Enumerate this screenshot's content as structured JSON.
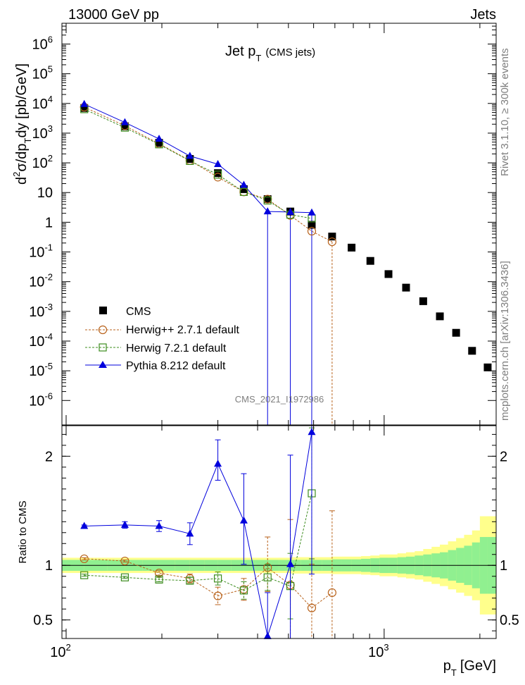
{
  "header": {
    "left": "13000 GeV pp",
    "right": "Jets"
  },
  "side_labels": {
    "rivet": "Rivet 3.1.10, ≥ 300k events",
    "mcplots": "mcplots.cern.ch [arXiv:1306.3436]"
  },
  "chart_data": [
    {
      "type": "scatter",
      "title_main": "Jet p",
      "title_sub": "T",
      "title_suffix": "(CMS jets)",
      "ylabel": "d²σ/dp_T dy [pb/GeV]",
      "ylabel_parts": {
        "d": "d",
        "sup2": "2",
        "sigma_dp": "σ/dp",
        "subT": "T",
        "dy_units": "dy [pb/GeV]"
      },
      "xscale": "log",
      "yscale": "log",
      "xlim": [
        97,
        2250
      ],
      "ylim": [
        1.5e-07,
        5000000.0
      ],
      "y_ticks": [
        {
          "v": 1000000.0,
          "b": "10",
          "e": "6"
        },
        {
          "v": 100000.0,
          "b": "10",
          "e": "5"
        },
        {
          "v": 10000.0,
          "b": "10",
          "e": "4"
        },
        {
          "v": 1000.0,
          "b": "10",
          "e": "3"
        },
        {
          "v": 100.0,
          "b": "10",
          "e": "2"
        },
        {
          "v": 10,
          "b": "10",
          "e": ""
        },
        {
          "v": 1,
          "b": "1",
          "e": ""
        },
        {
          "v": 0.1,
          "b": "10",
          "e": "-1"
        },
        {
          "v": 0.01,
          "b": "10",
          "e": "-2"
        },
        {
          "v": 0.001,
          "b": "10",
          "e": "-3"
        },
        {
          "v": 0.0001,
          "b": "10",
          "e": "-4"
        },
        {
          "v": 1e-05,
          "b": "10",
          "e": "-5"
        },
        {
          "v": 1e-06,
          "b": "10",
          "e": "-6"
        }
      ],
      "watermark": "CMS_2021_I1972986",
      "legend_position": "bottom-left",
      "series": [
        {
          "name": "CMS",
          "marker": "square",
          "color": "#000000",
          "x": [
            114,
            153,
            196,
            245,
            300,
            362,
            430,
            507,
            592,
            686,
            790,
            905,
            1032,
            1172,
            1327,
            1497,
            1684,
            1890,
            2116
          ],
          "y": [
            7000,
            1700,
            470,
            135,
            45,
            13,
            6,
            2.3,
            0.82,
            0.33,
            0.14,
            0.05,
            0.018,
            0.0063,
            0.0022,
            0.00068,
            0.00019,
            4.7e-05,
            1.3e-05
          ]
        },
        {
          "name": "Herwig++ 2.7.1 default",
          "marker": "circle",
          "color": "#b8621b",
          "x": [
            114,
            153,
            196,
            245,
            300,
            362,
            430,
            507,
            592,
            686
          ],
          "y": [
            7500,
            1780,
            440,
            120,
            33,
            10.5,
            6,
            1.7,
            0.5,
            0.22
          ]
        },
        {
          "name": "Herwig 7.2.1 default",
          "marker": "square-open",
          "color": "#3c8c1e",
          "x": [
            114,
            153,
            196,
            245,
            300,
            362,
            430,
            507,
            592
          ],
          "y": [
            6400,
            1530,
            420,
            116,
            40,
            10.5,
            5.4,
            1.8,
            1.35
          ]
        },
        {
          "name": "Pythia 8.212 default",
          "marker": "triangle",
          "color": "#0000dd",
          "x": [
            114,
            153,
            196,
            245,
            300,
            362,
            430,
            507,
            592
          ],
          "y": [
            9500,
            2300,
            640,
            170,
            90,
            18,
            2.3,
            2.2,
            2.1
          ]
        }
      ]
    },
    {
      "type": "scatter",
      "ylabel": "Ratio to CMS",
      "xlabel_main": "p",
      "xlabel_sub": "T",
      "xlabel_suffix": "[GeV]",
      "xscale": "log",
      "xlim": [
        97,
        2250
      ],
      "ylim": [
        0.33,
        2.28
      ],
      "y_ticks": [
        {
          "v": 0.5,
          "label": "0.5"
        },
        {
          "v": 1,
          "label": "1"
        },
        {
          "v": 2,
          "label": "2"
        }
      ],
      "x_ticks": [
        {
          "v": 100,
          "b": "10",
          "e": "2"
        },
        {
          "v": 1000,
          "b": "10",
          "e": "3"
        }
      ],
      "band_edges": [
        97,
        114,
        135,
        153,
        174,
        196,
        220,
        245,
        272,
        300,
        330,
        362,
        395,
        430,
        468,
        507,
        548,
        592,
        638,
        686,
        737,
        790,
        846,
        905,
        967,
        1032,
        1101,
        1172,
        1248,
        1327,
        1410,
        1497,
        1588,
        1684,
        1784,
        1890,
        2000,
        2116,
        2250
      ],
      "band_inner": [
        0.05,
        0.05,
        0.05,
        0.05,
        0.05,
        0.05,
        0.05,
        0.05,
        0.05,
        0.05,
        0.05,
        0.05,
        0.05,
        0.05,
        0.05,
        0.05,
        0.05,
        0.05,
        0.05,
        0.055,
        0.055,
        0.055,
        0.06,
        0.065,
        0.07,
        0.07,
        0.075,
        0.08,
        0.09,
        0.1,
        0.11,
        0.12,
        0.14,
        0.16,
        0.18,
        0.21,
        0.26,
        0.26
      ],
      "band_outer": [
        0.07,
        0.07,
        0.07,
        0.07,
        0.07,
        0.07,
        0.07,
        0.07,
        0.07,
        0.07,
        0.07,
        0.07,
        0.07,
        0.07,
        0.07,
        0.075,
        0.075,
        0.075,
        0.075,
        0.08,
        0.08,
        0.08,
        0.085,
        0.09,
        0.1,
        0.1,
        0.11,
        0.12,
        0.13,
        0.15,
        0.17,
        0.19,
        0.22,
        0.25,
        0.28,
        0.32,
        0.45,
        0.45
      ],
      "band_colors": {
        "inner": "#90f090",
        "outer": "#ffff8c"
      },
      "series": [
        {
          "name": "Herwig++ 2.7.1 default",
          "marker": "circle",
          "color": "#b8621b",
          "x": [
            114,
            153,
            196,
            245,
            300,
            362,
            430,
            507,
            592,
            686
          ],
          "y": [
            1.06,
            1.04,
            0.93,
            0.88,
            0.72,
            0.78,
            0.98,
            0.82,
            0.61,
            0.75
          ],
          "err_low": [
            0.01,
            0.01,
            0.02,
            0.04,
            0.08,
            0.1,
            0.22,
            0.5,
            0.3,
            0.45
          ],
          "err_high": [
            0.01,
            0.01,
            0.02,
            0.04,
            0.08,
            0.1,
            0.28,
            0.6,
            0.4,
            0.75
          ]
        },
        {
          "name": "Herwig 7.2.1 default",
          "marker": "square-open",
          "color": "#3c8c1e",
          "x": [
            114,
            153,
            196,
            245,
            300,
            362,
            430,
            507,
            592
          ],
          "y": [
            0.91,
            0.89,
            0.87,
            0.86,
            0.88,
            0.77,
            0.89,
            0.81,
            1.66
          ],
          "err_low": [
            0.01,
            0.01,
            0.02,
            0.03,
            0.06,
            0.08,
            0.12,
            0.3,
            0.6
          ],
          "err_high": [
            0.01,
            0.01,
            0.02,
            0.03,
            0.06,
            0.08,
            0.12,
            0.3,
            0.6
          ]
        },
        {
          "name": "Pythia 8.212 default",
          "marker": "triangle",
          "color": "#0000dd",
          "x": [
            114,
            153,
            196,
            245,
            300,
            362,
            430,
            507,
            592
          ],
          "y": [
            1.36,
            1.37,
            1.36,
            1.29,
            1.93,
            1.41,
            0.35,
            1.01,
            2.22
          ],
          "err_low": [
            0.01,
            0.03,
            0.05,
            0.1,
            0.15,
            0.4,
            0.4,
            0.7,
            1.3
          ],
          "err_high": [
            0.01,
            0.03,
            0.05,
            0.1,
            0.22,
            0.43,
            0.4,
            1.0,
            0.2
          ]
        }
      ]
    }
  ]
}
